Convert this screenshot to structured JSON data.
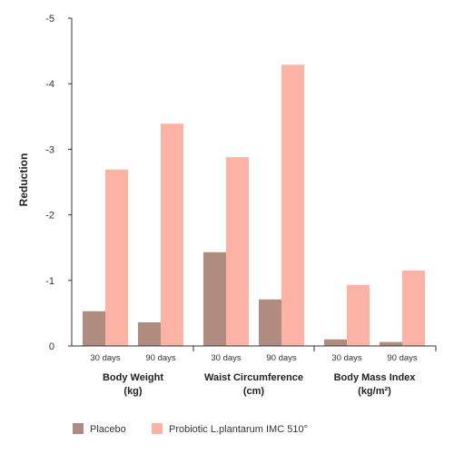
{
  "chart_data": {
    "type": "bar",
    "ylabel": "Reduction",
    "ylim": [
      0,
      -5
    ],
    "yticks": [
      "-5",
      "-4",
      "-3",
      "-2",
      "-1",
      "0"
    ],
    "groups": [
      {
        "label_line1": "Body Weight",
        "label_line2": "(kg)",
        "subcategories": [
          "30 days",
          "90 days"
        ]
      },
      {
        "label_line1": "Waist Circumference",
        "label_line2": "(cm)",
        "subcategories": [
          "30 days",
          "90 days"
        ]
      },
      {
        "label_line1": "Body Mass Index",
        "label_line2": "(kg/m²)",
        "subcategories": [
          "30 days",
          "90 days"
        ]
      }
    ],
    "series": [
      {
        "name": "Placebo",
        "color": "#b08b80",
        "values": [
          -0.53,
          -0.36,
          -1.43,
          -0.71,
          -0.1,
          -0.06
        ]
      },
      {
        "name": "Probiotic L.plantarum IMC 510°",
        "color": "#fdb2a6",
        "values": [
          -2.69,
          -3.39,
          -2.88,
          -4.29,
          -0.93,
          -1.15
        ]
      }
    ],
    "grid": false,
    "legend_position": "bottom-left"
  }
}
